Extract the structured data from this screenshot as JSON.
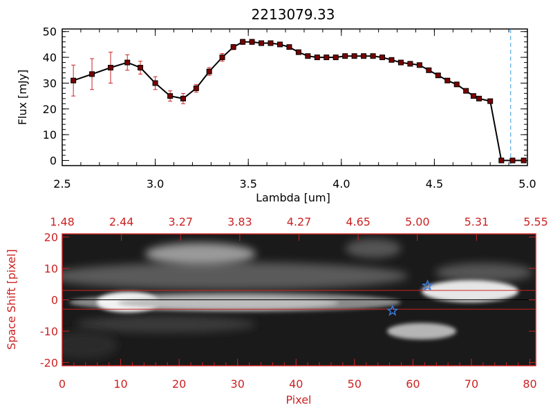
{
  "chart_data": [
    {
      "type": "line",
      "title": "2213079.33",
      "xlabel": "Lambda [um]",
      "ylabel": "Flux [mJy]",
      "xlim": [
        2.5,
        5.0
      ],
      "ylim": [
        -2,
        51
      ],
      "xticks": [
        "2.5",
        "3.0",
        "3.5",
        "4.0",
        "4.5",
        "5.0"
      ],
      "yticks": [
        "0",
        "10",
        "20",
        "30",
        "40",
        "50"
      ],
      "line_color": "#000000",
      "marker_color": "#7a0000",
      "errorbar_color": "#cc2222",
      "dashed_line_x": 4.91,
      "dashed_line_color": "#3399dd",
      "grid": false,
      "series": [
        {
          "x": [
            2.56,
            2.66,
            2.76,
            2.85,
            2.92,
            3.0,
            3.08,
            3.15,
            3.22,
            3.29,
            3.36,
            3.42,
            3.47,
            3.52,
            3.57,
            3.62,
            3.67,
            3.72,
            3.77,
            3.82,
            3.87,
            3.92,
            3.97,
            4.02,
            4.07,
            4.12,
            4.17,
            4.22,
            4.27,
            4.32,
            4.37,
            4.42,
            4.47,
            4.52,
            4.57,
            4.62,
            4.67,
            4.71,
            4.74,
            4.8,
            4.86,
            4.92,
            4.98
          ],
          "y": [
            31,
            33.5,
            36,
            38,
            36,
            30,
            25,
            24,
            28,
            34.5,
            40,
            44,
            46,
            46,
            45.5,
            45.5,
            45,
            44,
            42,
            40.5,
            40,
            40,
            40,
            40.5,
            40.5,
            40.5,
            40.5,
            40,
            39,
            38,
            37.5,
            37,
            35,
            33,
            31,
            29.5,
            27,
            25,
            24,
            23,
            0,
            0,
            0
          ],
          "err": [
            6,
            6,
            6,
            3,
            2.5,
            2.5,
            2,
            2,
            1.5,
            1.5,
            1.5,
            1,
            1,
            1,
            0.8,
            0.8,
            0.8,
            0.8,
            0.8,
            0.8,
            0.8,
            0.8,
            0.8,
            0.8,
            0.8,
            0.8,
            0.8,
            0.8,
            0.8,
            0.8,
            0.8,
            0.8,
            0.8,
            0.8,
            0.8,
            0.8,
            0.8,
            0.8,
            0.8,
            0.8,
            0,
            0,
            0
          ]
        }
      ]
    },
    {
      "type": "heatmap",
      "xlabel": "Pixel",
      "ylabel": "Space Shift [pixel]",
      "top_axis_ticks": [
        "1.48",
        "2.44",
        "3.27",
        "3.83",
        "4.27",
        "4.65",
        "5.00",
        "5.31",
        "5.55"
      ],
      "xlim": [
        0,
        81
      ],
      "ylim": [
        -21,
        21
      ],
      "xticks": [
        "0",
        "10",
        "20",
        "30",
        "40",
        "50",
        "60",
        "70",
        "80"
      ],
      "yticks": [
        "-20",
        "-10",
        "0",
        "10",
        "20"
      ],
      "axis_color": "#cc2222",
      "horizontal_lines": [
        3,
        -3
      ],
      "center_line": 0,
      "star_markers": [
        {
          "x": 62.5,
          "y": 4.5
        },
        {
          "x": 56.5,
          "y": -3.5
        }
      ],
      "star_color": "#3a7de0"
    }
  ]
}
